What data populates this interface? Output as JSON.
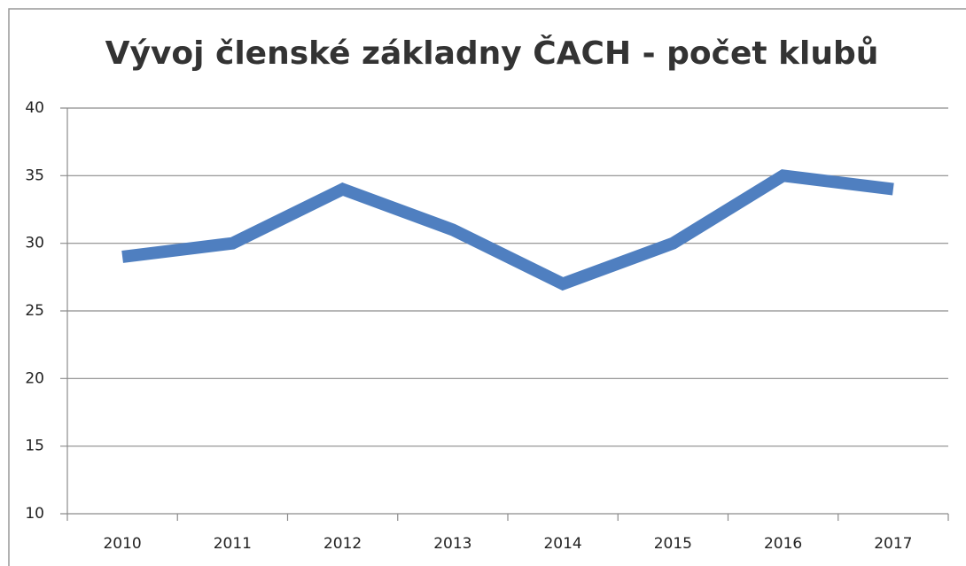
{
  "chart_data": {
    "type": "line",
    "title": "Vývoj členské základny ČACH - počet klubů",
    "categories": [
      "2010",
      "2011",
      "2012",
      "2013",
      "2014",
      "2015",
      "2016",
      "2017"
    ],
    "series": [
      {
        "name": "počet klubů",
        "color": "#4f7fc0",
        "values": [
          29,
          30,
          34,
          31,
          27,
          30,
          35,
          34
        ]
      }
    ],
    "ylim": [
      10,
      40
    ],
    "yticks": [
      10,
      15,
      20,
      25,
      30,
      35,
      40
    ],
    "grid": true,
    "legend": false
  }
}
